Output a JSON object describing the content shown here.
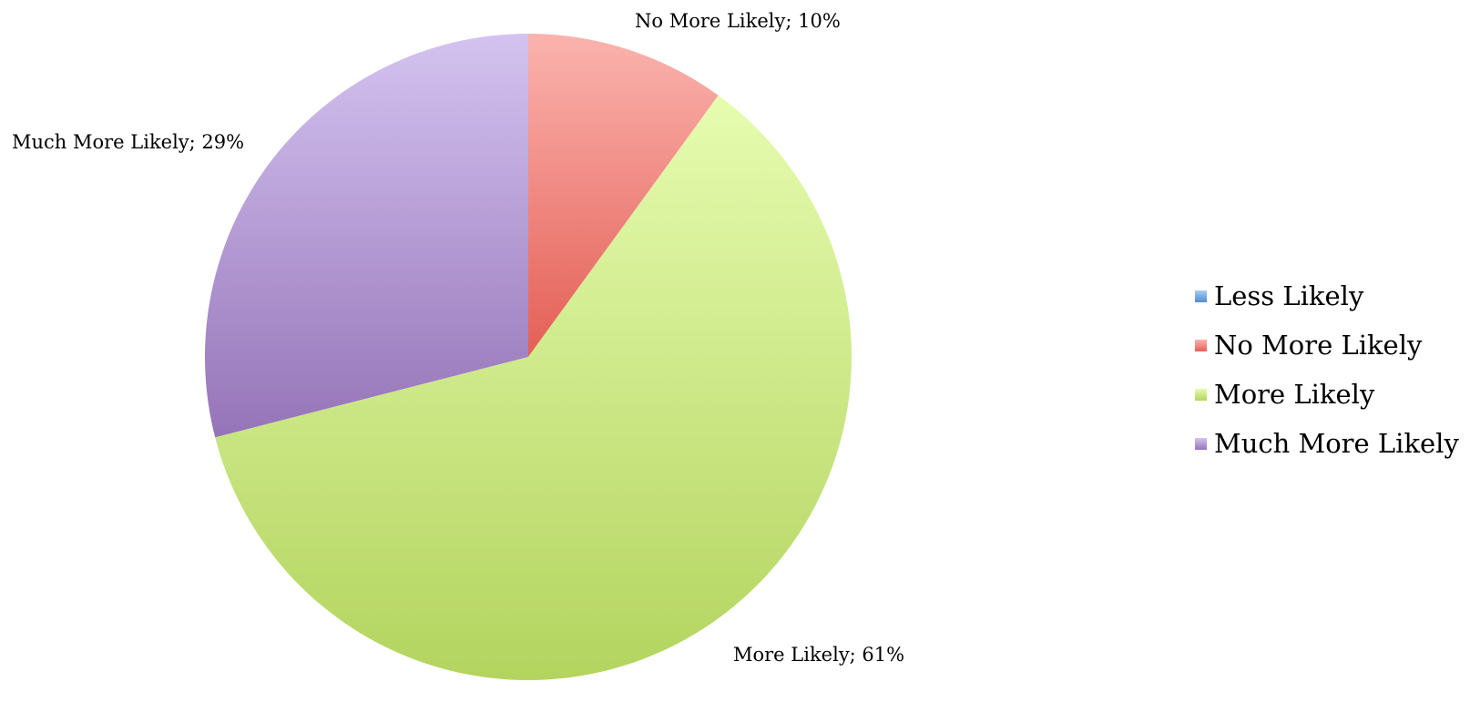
{
  "chart_data": {
    "type": "pie",
    "title": "",
    "series": [
      {
        "name": "Less Likely",
        "value": 0,
        "color": "#5b9bd5"
      },
      {
        "name": "No More Likely",
        "value": 10,
        "color": "#e8625a",
        "label": "No More Likely; 10%"
      },
      {
        "name": "More Likely",
        "value": 61,
        "color": "#b5d564",
        "label": "More Likely; 61%"
      },
      {
        "name": "Much More Likely",
        "value": 29,
        "color": "#9c7fbf",
        "label": "Much More Likely; 29%"
      }
    ],
    "legend_position": "right"
  },
  "legend": {
    "items": [
      {
        "label": "Less Likely",
        "color": "#5b9bd5"
      },
      {
        "label": "No More Likely",
        "color": "#e8625a"
      },
      {
        "label": "More Likely",
        "color": "#b5d564"
      },
      {
        "label": "Much More Likely",
        "color": "#9c7fbf"
      }
    ]
  }
}
